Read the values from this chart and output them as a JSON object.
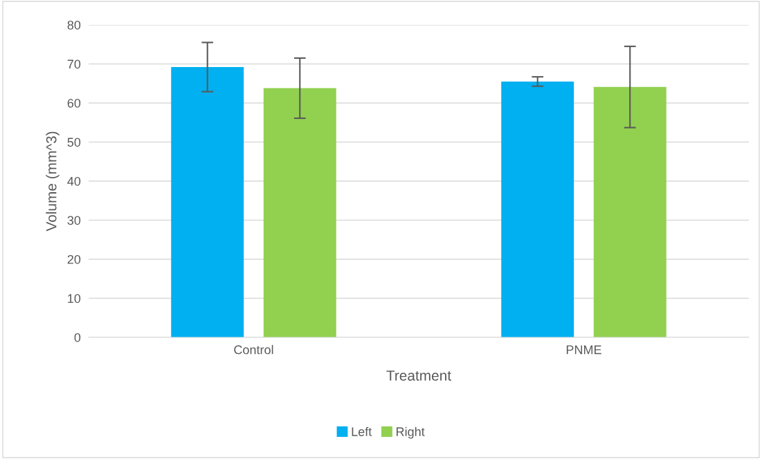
{
  "chart_data": {
    "type": "bar",
    "xlabel": "Treatment",
    "ylabel": "Volume (mm^3)",
    "categories": [
      "Control",
      "PNME"
    ],
    "series": [
      {
        "name": "Left",
        "color": "#00b0f0",
        "values": [
          69.2,
          65.5
        ],
        "errors": [
          6.3,
          1.2
        ]
      },
      {
        "name": "Right",
        "color": "#92d050",
        "values": [
          63.8,
          64.1
        ],
        "errors": [
          7.7,
          10.4
        ]
      }
    ],
    "ylim": [
      0,
      80
    ],
    "yticks": [
      0,
      10,
      20,
      30,
      40,
      50,
      60,
      70,
      80
    ],
    "grid": "y",
    "legend": "bottom"
  }
}
